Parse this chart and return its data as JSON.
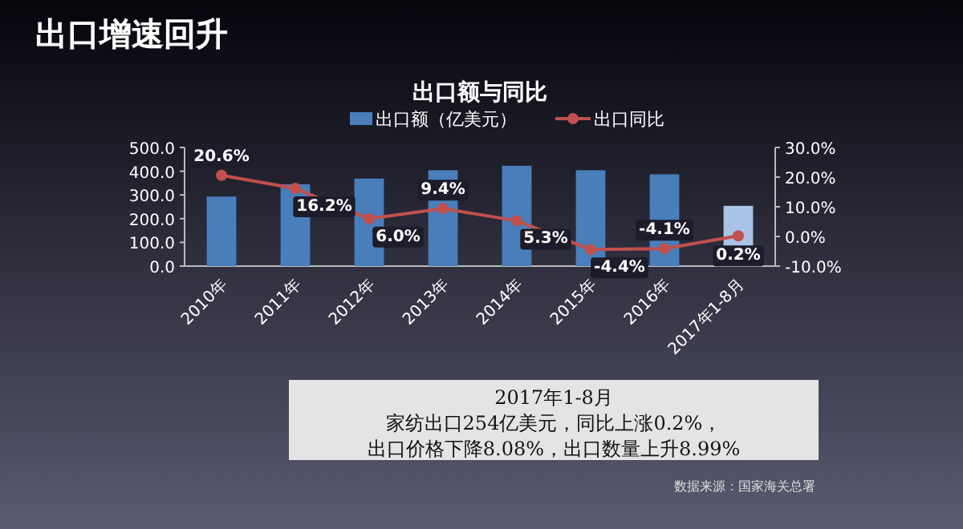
{
  "chart_data": {
    "type": "bar",
    "title": "出口增速回升",
    "subtitle": "出口额与同比",
    "categories": [
      "2010年",
      "2011年",
      "2012年",
      "2013年",
      "2014年",
      "2015年",
      "2016年",
      "2017年1-8月"
    ],
    "series": [
      {
        "name": "出口额（亿美元）",
        "type": "bar",
        "color": "#4a7ebb",
        "colors": [
          "#4a7ebb",
          "#4a7ebb",
          "#4a7ebb",
          "#4a7ebb",
          "#4a7ebb",
          "#4a7ebb",
          "#4a7ebb",
          "#a9c4e6"
        ],
        "values": [
          293,
          345,
          369,
          404,
          423,
          404,
          387,
          254
        ]
      },
      {
        "name": "出口同比",
        "type": "line",
        "axis": "y2",
        "color": "#c0504d",
        "values": [
          20.6,
          16.2,
          6.0,
          9.4,
          5.3,
          -4.4,
          -4.1,
          0.2
        ],
        "value_labels": [
          "20.6%",
          "16.2%",
          "6.0%",
          "9.4%",
          "5.3%",
          "-4.4%",
          "-4.1%",
          "0.2%"
        ]
      }
    ],
    "ylim": [
      0,
      500
    ],
    "yticks": [
      {
        "value": 0,
        "label": "0.0"
      },
      {
        "value": 100,
        "label": "100.0"
      },
      {
        "value": 200,
        "label": "200.0"
      },
      {
        "value": 300,
        "label": "300.0"
      },
      {
        "value": 400,
        "label": "400.0"
      },
      {
        "value": 500,
        "label": "500.0"
      }
    ],
    "y2lim": [
      -10,
      30
    ],
    "y2ticks": [
      {
        "value": -10,
        "label": "-10.0%"
      },
      {
        "value": 0,
        "label": "0.0%"
      },
      {
        "value": 10,
        "label": "10.0%"
      },
      {
        "value": 20,
        "label": "20.0%"
      },
      {
        "value": 30,
        "label": "30.0%"
      }
    ],
    "legend": "top",
    "marker": "circle",
    "annotations": [
      "2017年1-8月",
      "家纺出口254亿美元，同比上涨0.2%，",
      "出口价格下降8.08%，出口数量上升8.99%",
      "数据来源：国家海关总署"
    ]
  }
}
